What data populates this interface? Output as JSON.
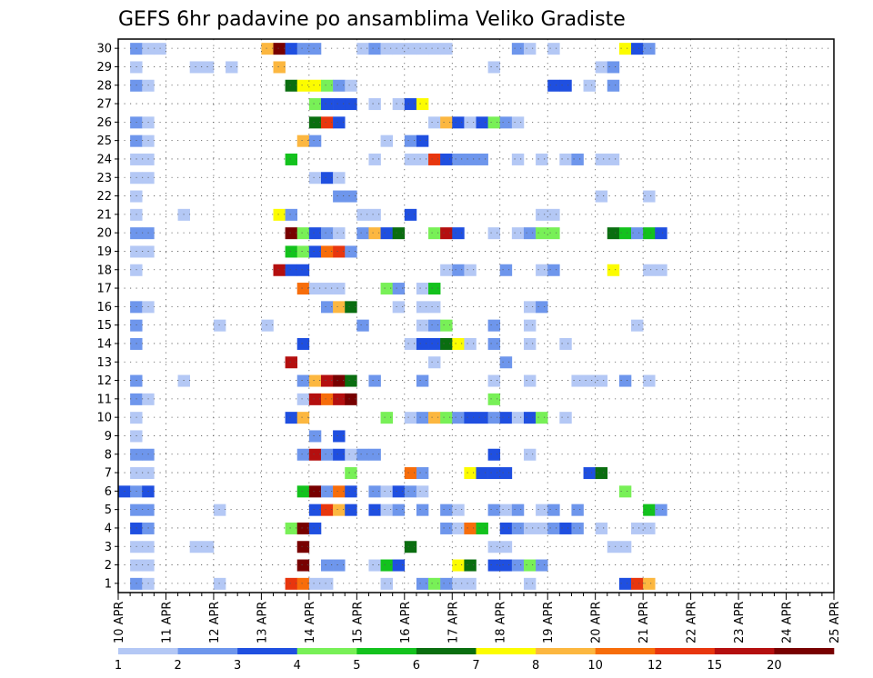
{
  "chart_data": {
    "type": "heatmap",
    "title": "GEFS 6hr padavine po ansamblima Veliko Gradiste",
    "y_tick_labels": [
      "1",
      "2",
      "3",
      "4",
      "5",
      "6",
      "7",
      "8",
      "9",
      "10",
      "11",
      "12",
      "13",
      "14",
      "15",
      "16",
      "17",
      "18",
      "19",
      "20",
      "21",
      "22",
      "23",
      "24",
      "25",
      "26",
      "27",
      "28",
      "29",
      "30"
    ],
    "x_tick_labels": [
      "10 APR",
      "11 APR",
      "12 APR",
      "13 APR",
      "14 APR",
      "15 APR",
      "16 APR",
      "17 APR",
      "18 APR",
      "19 APR",
      "20 APR",
      "21 APR",
      "22 APR",
      "23 APR",
      "24 APR",
      "25 APR"
    ],
    "x_range": [
      "10 APR 00z",
      "25 APR 00z"
    ],
    "x_step_hours": 6,
    "y_range": [
      0.5,
      30.5
    ],
    "grid": "dotted",
    "color_bins": [
      {
        "min": 1,
        "color": "#b4c8f5"
      },
      {
        "min": 2,
        "color": "#6e96ec"
      },
      {
        "min": 3,
        "color": "#1f4fe0"
      },
      {
        "min": 4,
        "color": "#78f057"
      },
      {
        "min": 5,
        "color": "#13c21d"
      },
      {
        "min": 6,
        "color": "#0a6e10"
      },
      {
        "min": 7,
        "color": "#fcfc00"
      },
      {
        "min": 8,
        "color": "#fcb740"
      },
      {
        "min": 10,
        "color": "#f76d0a"
      },
      {
        "min": 12,
        "color": "#e8360e"
      },
      {
        "min": 15,
        "color": "#b40f0f"
      },
      {
        "min": 20,
        "color": "#780000"
      }
    ],
    "colorbar_labels": [
      "1",
      "2",
      "3",
      "4",
      "5",
      "6",
      "7",
      "8",
      "10",
      "12",
      "15",
      "20"
    ],
    "cells": [
      [
        30,
        1,
        2
      ],
      [
        30,
        2,
        1
      ],
      [
        30,
        3,
        1
      ],
      [
        30,
        12,
        8
      ],
      [
        30,
        13,
        20
      ],
      [
        30,
        14,
        3
      ],
      [
        30,
        15,
        2
      ],
      [
        30,
        16,
        2
      ],
      [
        30,
        20,
        1
      ],
      [
        30,
        21,
        2
      ],
      [
        30,
        22,
        1
      ],
      [
        30,
        23,
        1
      ],
      [
        30,
        24,
        1
      ],
      [
        30,
        25,
        1
      ],
      [
        30,
        26,
        1
      ],
      [
        30,
        27,
        1
      ],
      [
        30,
        33,
        2
      ],
      [
        30,
        34,
        1
      ],
      [
        30,
        36,
        1
      ],
      [
        30,
        42,
        7
      ],
      [
        30,
        43,
        3
      ],
      [
        30,
        44,
        2
      ],
      [
        29,
        1,
        1
      ],
      [
        29,
        6,
        1
      ],
      [
        29,
        7,
        1
      ],
      [
        29,
        9,
        1
      ],
      [
        29,
        13,
        8
      ],
      [
        29,
        31,
        1
      ],
      [
        29,
        40,
        1
      ],
      [
        29,
        41,
        2
      ],
      [
        28,
        1,
        2
      ],
      [
        28,
        2,
        1
      ],
      [
        28,
        14,
        6
      ],
      [
        28,
        15,
        7
      ],
      [
        28,
        16,
        7
      ],
      [
        28,
        17,
        4
      ],
      [
        28,
        18,
        2
      ],
      [
        28,
        19,
        1
      ],
      [
        28,
        36,
        3
      ],
      [
        28,
        37,
        3
      ],
      [
        28,
        39,
        1
      ],
      [
        28,
        41,
        2
      ],
      [
        27,
        16,
        4
      ],
      [
        27,
        17,
        3
      ],
      [
        27,
        18,
        3
      ],
      [
        27,
        19,
        3
      ],
      [
        27,
        21,
        1
      ],
      [
        27,
        23,
        1
      ],
      [
        27,
        24,
        3
      ],
      [
        27,
        25,
        7
      ],
      [
        26,
        1,
        2
      ],
      [
        26,
        2,
        1
      ],
      [
        26,
        16,
        6
      ],
      [
        26,
        17,
        12
      ],
      [
        26,
        18,
        3
      ],
      [
        26,
        26,
        1
      ],
      [
        26,
        27,
        8
      ],
      [
        26,
        28,
        3
      ],
      [
        26,
        29,
        1
      ],
      [
        26,
        30,
        3
      ],
      [
        26,
        31,
        4
      ],
      [
        26,
        32,
        2
      ],
      [
        26,
        33,
        1
      ],
      [
        25,
        1,
        2
      ],
      [
        25,
        2,
        1
      ],
      [
        25,
        15,
        8
      ],
      [
        25,
        16,
        2
      ],
      [
        25,
        22,
        1
      ],
      [
        25,
        24,
        2
      ],
      [
        25,
        25,
        3
      ],
      [
        24,
        1,
        1
      ],
      [
        24,
        2,
        1
      ],
      [
        24,
        14,
        5
      ],
      [
        24,
        21,
        1
      ],
      [
        24,
        24,
        1
      ],
      [
        24,
        25,
        1
      ],
      [
        24,
        26,
        12
      ],
      [
        24,
        27,
        3
      ],
      [
        24,
        28,
        2
      ],
      [
        24,
        29,
        2
      ],
      [
        24,
        30,
        2
      ],
      [
        24,
        33,
        1
      ],
      [
        24,
        35,
        1
      ],
      [
        24,
        37,
        1
      ],
      [
        24,
        38,
        2
      ],
      [
        24,
        40,
        1
      ],
      [
        24,
        41,
        1
      ],
      [
        23,
        1,
        1
      ],
      [
        23,
        2,
        1
      ],
      [
        23,
        16,
        1
      ],
      [
        23,
        17,
        3
      ],
      [
        23,
        18,
        1
      ],
      [
        22,
        1,
        1
      ],
      [
        22,
        18,
        2
      ],
      [
        22,
        19,
        2
      ],
      [
        22,
        40,
        1
      ],
      [
        22,
        44,
        1
      ],
      [
        21,
        1,
        1
      ],
      [
        21,
        5,
        1
      ],
      [
        21,
        13,
        7
      ],
      [
        21,
        14,
        2
      ],
      [
        21,
        20,
        1
      ],
      [
        21,
        21,
        1
      ],
      [
        21,
        24,
        3
      ],
      [
        21,
        35,
        1
      ],
      [
        21,
        36,
        1
      ],
      [
        20,
        1,
        2
      ],
      [
        20,
        2,
        2
      ],
      [
        20,
        14,
        20
      ],
      [
        20,
        15,
        4
      ],
      [
        20,
        16,
        3
      ],
      [
        20,
        17,
        2
      ],
      [
        20,
        18,
        1
      ],
      [
        20,
        20,
        2
      ],
      [
        20,
        21,
        8
      ],
      [
        20,
        22,
        3
      ],
      [
        20,
        23,
        6
      ],
      [
        20,
        26,
        4
      ],
      [
        20,
        27,
        15
      ],
      [
        20,
        28,
        3
      ],
      [
        20,
        31,
        1
      ],
      [
        20,
        33,
        1
      ],
      [
        20,
        34,
        2
      ],
      [
        20,
        35,
        4
      ],
      [
        20,
        36,
        4
      ],
      [
        20,
        41,
        6
      ],
      [
        20,
        42,
        5
      ],
      [
        20,
        43,
        2
      ],
      [
        20,
        44,
        5
      ],
      [
        20,
        45,
        3
      ],
      [
        19,
        1,
        1
      ],
      [
        19,
        2,
        1
      ],
      [
        19,
        14,
        5
      ],
      [
        19,
        15,
        4
      ],
      [
        19,
        16,
        3
      ],
      [
        19,
        17,
        10
      ],
      [
        19,
        18,
        12
      ],
      [
        19,
        19,
        2
      ],
      [
        18,
        1,
        1
      ],
      [
        18,
        13,
        15
      ],
      [
        18,
        14,
        3
      ],
      [
        18,
        15,
        3
      ],
      [
        18,
        27,
        1
      ],
      [
        18,
        28,
        2
      ],
      [
        18,
        29,
        1
      ],
      [
        18,
        32,
        2
      ],
      [
        18,
        35,
        1
      ],
      [
        18,
        36,
        2
      ],
      [
        18,
        41,
        7
      ],
      [
        18,
        44,
        1
      ],
      [
        18,
        45,
        1
      ],
      [
        17,
        15,
        10
      ],
      [
        17,
        16,
        1
      ],
      [
        17,
        17,
        1
      ],
      [
        17,
        18,
        1
      ],
      [
        17,
        22,
        4
      ],
      [
        17,
        23,
        2
      ],
      [
        17,
        25,
        1
      ],
      [
        17,
        26,
        5
      ],
      [
        16,
        1,
        2
      ],
      [
        16,
        2,
        1
      ],
      [
        16,
        17,
        2
      ],
      [
        16,
        18,
        8
      ],
      [
        16,
        19,
        6
      ],
      [
        16,
        23,
        1
      ],
      [
        16,
        25,
        1
      ],
      [
        16,
        26,
        1
      ],
      [
        16,
        34,
        1
      ],
      [
        16,
        35,
        2
      ],
      [
        15,
        1,
        2
      ],
      [
        15,
        8,
        1
      ],
      [
        15,
        12,
        1
      ],
      [
        15,
        20,
        2
      ],
      [
        15,
        25,
        1
      ],
      [
        15,
        26,
        2
      ],
      [
        15,
        27,
        4
      ],
      [
        15,
        31,
        2
      ],
      [
        15,
        34,
        1
      ],
      [
        15,
        43,
        1
      ],
      [
        14,
        1,
        2
      ],
      [
        14,
        15,
        3
      ],
      [
        14,
        24,
        1
      ],
      [
        14,
        25,
        3
      ],
      [
        14,
        26,
        3
      ],
      [
        14,
        27,
        6
      ],
      [
        14,
        28,
        7
      ],
      [
        14,
        29,
        1
      ],
      [
        14,
        31,
        2
      ],
      [
        14,
        34,
        1
      ],
      [
        14,
        37,
        1
      ],
      [
        13,
        14,
        15
      ],
      [
        13,
        26,
        1
      ],
      [
        13,
        32,
        2
      ],
      [
        12,
        1,
        2
      ],
      [
        12,
        5,
        1
      ],
      [
        12,
        15,
        2
      ],
      [
        12,
        16,
        8
      ],
      [
        12,
        17,
        15
      ],
      [
        12,
        18,
        20
      ],
      [
        12,
        19,
        6
      ],
      [
        12,
        21,
        2
      ],
      [
        12,
        25,
        2
      ],
      [
        12,
        31,
        1
      ],
      [
        12,
        34,
        1
      ],
      [
        12,
        38,
        1
      ],
      [
        12,
        39,
        1
      ],
      [
        12,
        40,
        1
      ],
      [
        12,
        42,
        2
      ],
      [
        12,
        44,
        1
      ],
      [
        11,
        1,
        2
      ],
      [
        11,
        2,
        1
      ],
      [
        11,
        15,
        1
      ],
      [
        11,
        16,
        15
      ],
      [
        11,
        17,
        10
      ],
      [
        11,
        18,
        15
      ],
      [
        11,
        19,
        20
      ],
      [
        11,
        31,
        4
      ],
      [
        10,
        1,
        1
      ],
      [
        10,
        14,
        3
      ],
      [
        10,
        15,
        8
      ],
      [
        10,
        22,
        4
      ],
      [
        10,
        24,
        1
      ],
      [
        10,
        25,
        2
      ],
      [
        10,
        26,
        8
      ],
      [
        10,
        27,
        4
      ],
      [
        10,
        28,
        2
      ],
      [
        10,
        29,
        3
      ],
      [
        10,
        30,
        3
      ],
      [
        10,
        31,
        2
      ],
      [
        10,
        32,
        3
      ],
      [
        10,
        33,
        1
      ],
      [
        10,
        34,
        3
      ],
      [
        10,
        35,
        4
      ],
      [
        10,
        37,
        1
      ],
      [
        9,
        1,
        1
      ],
      [
        9,
        16,
        2
      ],
      [
        9,
        18,
        3
      ],
      [
        8,
        1,
        2
      ],
      [
        8,
        2,
        2
      ],
      [
        8,
        15,
        2
      ],
      [
        8,
        16,
        15
      ],
      [
        8,
        17,
        2
      ],
      [
        8,
        18,
        3
      ],
      [
        8,
        19,
        1
      ],
      [
        8,
        20,
        2
      ],
      [
        8,
        21,
        2
      ],
      [
        8,
        31,
        3
      ],
      [
        8,
        34,
        1
      ],
      [
        7,
        1,
        1
      ],
      [
        7,
        2,
        1
      ],
      [
        7,
        19,
        4
      ],
      [
        7,
        24,
        10
      ],
      [
        7,
        25,
        2
      ],
      [
        7,
        29,
        7
      ],
      [
        7,
        30,
        3
      ],
      [
        7,
        31,
        3
      ],
      [
        7,
        32,
        3
      ],
      [
        7,
        39,
        3
      ],
      [
        7,
        40,
        6
      ],
      [
        6,
        0,
        3
      ],
      [
        6,
        1,
        2
      ],
      [
        6,
        2,
        3
      ],
      [
        6,
        15,
        5
      ],
      [
        6,
        16,
        20
      ],
      [
        6,
        17,
        2
      ],
      [
        6,
        18,
        10
      ],
      [
        6,
        19,
        3
      ],
      [
        6,
        21,
        2
      ],
      [
        6,
        22,
        1
      ],
      [
        6,
        23,
        3
      ],
      [
        6,
        24,
        2
      ],
      [
        6,
        25,
        1
      ],
      [
        6,
        42,
        4
      ],
      [
        5,
        1,
        2
      ],
      [
        5,
        2,
        2
      ],
      [
        5,
        8,
        1
      ],
      [
        5,
        16,
        3
      ],
      [
        5,
        17,
        12
      ],
      [
        5,
        18,
        8
      ],
      [
        5,
        19,
        3
      ],
      [
        5,
        21,
        3
      ],
      [
        5,
        22,
        1
      ],
      [
        5,
        23,
        2
      ],
      [
        5,
        25,
        2
      ],
      [
        5,
        27,
        2
      ],
      [
        5,
        28,
        1
      ],
      [
        5,
        31,
        2
      ],
      [
        5,
        32,
        1
      ],
      [
        5,
        33,
        2
      ],
      [
        5,
        35,
        1
      ],
      [
        5,
        36,
        2
      ],
      [
        5,
        38,
        2
      ],
      [
        5,
        44,
        5
      ],
      [
        5,
        45,
        2
      ],
      [
        4,
        1,
        3
      ],
      [
        4,
        2,
        2
      ],
      [
        4,
        14,
        4
      ],
      [
        4,
        15,
        20
      ],
      [
        4,
        16,
        3
      ],
      [
        4,
        27,
        2
      ],
      [
        4,
        28,
        1
      ],
      [
        4,
        29,
        10
      ],
      [
        4,
        30,
        5
      ],
      [
        4,
        32,
        3
      ],
      [
        4,
        33,
        2
      ],
      [
        4,
        34,
        1
      ],
      [
        4,
        35,
        1
      ],
      [
        4,
        36,
        2
      ],
      [
        4,
        37,
        3
      ],
      [
        4,
        38,
        2
      ],
      [
        4,
        40,
        1
      ],
      [
        4,
        43,
        1
      ],
      [
        4,
        44,
        1
      ],
      [
        3,
        1,
        1
      ],
      [
        3,
        2,
        1
      ],
      [
        3,
        6,
        1
      ],
      [
        3,
        7,
        1
      ],
      [
        3,
        15,
        20
      ],
      [
        3,
        24,
        6
      ],
      [
        3,
        31,
        1
      ],
      [
        3,
        32,
        1
      ],
      [
        3,
        41,
        1
      ],
      [
        3,
        42,
        1
      ],
      [
        2,
        1,
        1
      ],
      [
        2,
        2,
        1
      ],
      [
        2,
        15,
        20
      ],
      [
        2,
        17,
        2
      ],
      [
        2,
        18,
        2
      ],
      [
        2,
        21,
        1
      ],
      [
        2,
        22,
        5
      ],
      [
        2,
        23,
        3
      ],
      [
        2,
        28,
        7
      ],
      [
        2,
        29,
        6
      ],
      [
        2,
        31,
        3
      ],
      [
        2,
        32,
        3
      ],
      [
        2,
        33,
        2
      ],
      [
        2,
        34,
        4
      ],
      [
        2,
        35,
        2
      ],
      [
        1,
        1,
        2
      ],
      [
        1,
        2,
        1
      ],
      [
        1,
        8,
        1
      ],
      [
        1,
        14,
        12
      ],
      [
        1,
        15,
        10
      ],
      [
        1,
        16,
        1
      ],
      [
        1,
        17,
        1
      ],
      [
        1,
        22,
        1
      ],
      [
        1,
        25,
        2
      ],
      [
        1,
        26,
        4
      ],
      [
        1,
        27,
        2
      ],
      [
        1,
        28,
        1
      ],
      [
        1,
        29,
        1
      ],
      [
        1,
        34,
        1
      ],
      [
        1,
        42,
        3
      ],
      [
        1,
        43,
        12
      ],
      [
        1,
        44,
        8
      ]
    ]
  }
}
